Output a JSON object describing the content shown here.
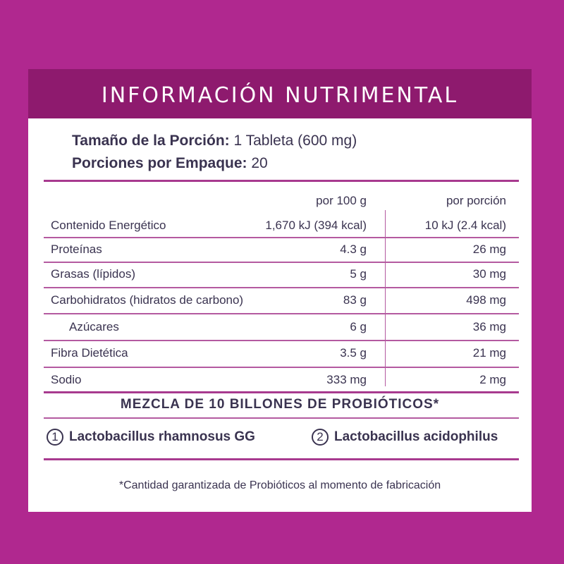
{
  "header": {
    "title": "INFORMACIÓN NUTRIMENTAL"
  },
  "serving": {
    "size_label": "Tamaño de la Porción:",
    "size_value": " 1 Tableta (600 mg)",
    "count_label": "Porciones por Empaque:",
    "count_value": " 20"
  },
  "table": {
    "col_100g": "por 100 g",
    "col_portion": "por porción",
    "rows": [
      {
        "name": "Contenido Energético",
        "per100": "1,670 kJ (394 kcal)",
        "perPortion": "10 kJ (2.4 kcal)"
      },
      {
        "name": "Proteínas",
        "per100": "4.3 g",
        "perPortion": "26 mg"
      },
      {
        "name": "Grasas (lípidos)",
        "per100": "5 g",
        "perPortion": "30 mg"
      },
      {
        "name": "Carbohidratos (hidratos de carbono)",
        "per100": "83 g",
        "perPortion": "498 mg"
      },
      {
        "name": "Azúcares",
        "per100": "6 g",
        "perPortion": "36 mg"
      },
      {
        "name": "Fibra Dietética",
        "per100": "3.5 g",
        "perPortion": "21 mg"
      },
      {
        "name": "Sodio",
        "per100": "333 mg",
        "perPortion": "2 mg"
      }
    ]
  },
  "probiotics": {
    "title": "MEZCLA DE 10 BILLONES DE PROBIÓTICOS*",
    "strains": [
      {
        "number": "1",
        "name": "Lactobacillus rhamnosus GG"
      },
      {
        "number": "2",
        "name": "Lactobacillus acidophilus"
      }
    ]
  },
  "footnote": "*Cantidad garantizada de Probióticos al momento de fabricación",
  "colors": {
    "background": "#b0288f",
    "header": "#8e1a6e",
    "rule": "#a83a8f",
    "text": "#3a3350"
  }
}
